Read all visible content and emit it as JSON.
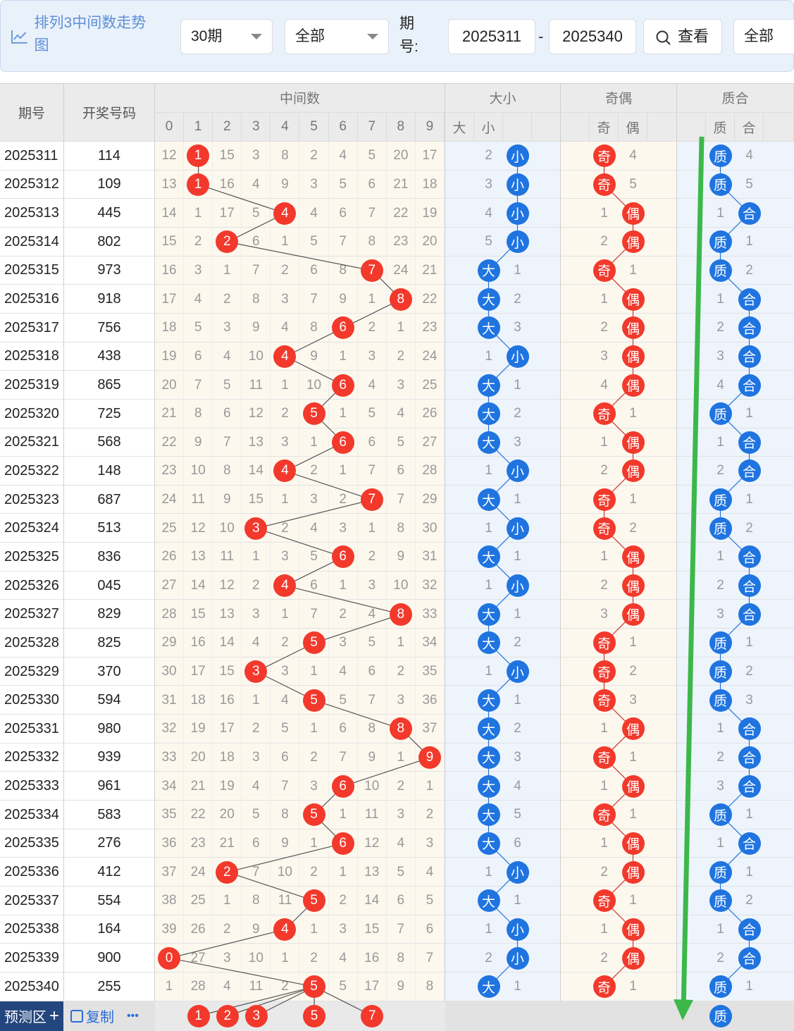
{
  "toolbar": {
    "title": "排列3中间数走势图",
    "period_select": "30期",
    "scope_select": "全部",
    "range_label": "期号:",
    "range_start": "2025311",
    "range_end": "2025340",
    "view_button": "查看",
    "all_select": "全部"
  },
  "headers": {
    "issue": "期号",
    "code": "开奖号码",
    "middle": "中间数",
    "bigsmall": "大小",
    "oddeven": "奇偶",
    "primecomp": "质合",
    "big": "大",
    "small": "小",
    "odd": "奇",
    "even": "偶",
    "prime": "质",
    "comp": "合",
    "digits": [
      "0",
      "1",
      "2",
      "3",
      "4",
      "5",
      "6",
      "7",
      "8",
      "9"
    ]
  },
  "chart_data": {
    "type": "table",
    "title": "排列3中间数走势图",
    "series": [
      {
        "name": "中间数"
      }
    ],
    "rows": [
      {
        "issue": "2025311",
        "code": "114",
        "digits": [
          "12",
          "1",
          "15",
          "3",
          "8",
          "2",
          "4",
          "5",
          "20",
          "17"
        ],
        "hit": 1,
        "bs": [
          "2",
          "小"
        ],
        "bs_hit": "small",
        "oe": [
          "奇",
          "4"
        ],
        "oe_hit": "odd",
        "pc": [
          "质",
          "4"
        ],
        "pc_hit": "prime"
      },
      {
        "issue": "2025312",
        "code": "109",
        "digits": [
          "13",
          "1",
          "16",
          "4",
          "9",
          "3",
          "5",
          "6",
          "21",
          "18"
        ],
        "hit": 1,
        "bs": [
          "3",
          "小"
        ],
        "bs_hit": "small",
        "oe": [
          "奇",
          "5"
        ],
        "oe_hit": "odd",
        "pc": [
          "质",
          "5"
        ],
        "pc_hit": "prime"
      },
      {
        "issue": "2025313",
        "code": "445",
        "digits": [
          "14",
          "1",
          "17",
          "5",
          "4",
          "4",
          "6",
          "7",
          "22",
          "19"
        ],
        "hit": 4,
        "bs": [
          "4",
          "小"
        ],
        "bs_hit": "small",
        "oe": [
          "1",
          "偶"
        ],
        "oe_hit": "even",
        "pc": [
          "1",
          "合"
        ],
        "pc_hit": "comp"
      },
      {
        "issue": "2025314",
        "code": "802",
        "digits": [
          "15",
          "2",
          "2",
          "6",
          "1",
          "5",
          "7",
          "8",
          "23",
          "20"
        ],
        "hit": 2,
        "bs": [
          "5",
          "小"
        ],
        "bs_hit": "small",
        "oe": [
          "2",
          "偶"
        ],
        "oe_hit": "even",
        "pc": [
          "质",
          "1"
        ],
        "pc_hit": "prime"
      },
      {
        "issue": "2025315",
        "code": "973",
        "digits": [
          "16",
          "3",
          "1",
          "7",
          "2",
          "6",
          "8",
          "7",
          "24",
          "21"
        ],
        "hit": 7,
        "bs": [
          "大",
          "1"
        ],
        "bs_hit": "big",
        "oe": [
          "奇",
          "1"
        ],
        "oe_hit": "odd",
        "pc": [
          "质",
          "2"
        ],
        "pc_hit": "prime"
      },
      {
        "issue": "2025316",
        "code": "918",
        "digits": [
          "17",
          "4",
          "2",
          "8",
          "3",
          "7",
          "9",
          "1",
          "8",
          "22"
        ],
        "hit": 8,
        "bs": [
          "大",
          "2"
        ],
        "bs_hit": "big",
        "oe": [
          "1",
          "偶"
        ],
        "oe_hit": "even",
        "pc": [
          "1",
          "合"
        ],
        "pc_hit": "comp"
      },
      {
        "issue": "2025317",
        "code": "756",
        "digits": [
          "18",
          "5",
          "3",
          "9",
          "4",
          "8",
          "6",
          "2",
          "1",
          "23"
        ],
        "hit": 6,
        "bs": [
          "大",
          "3"
        ],
        "bs_hit": "big",
        "oe": [
          "2",
          "偶"
        ],
        "oe_hit": "even",
        "pc": [
          "2",
          "合"
        ],
        "pc_hit": "comp"
      },
      {
        "issue": "2025318",
        "code": "438",
        "digits": [
          "19",
          "6",
          "4",
          "10",
          "4",
          "9",
          "1",
          "3",
          "2",
          "24"
        ],
        "hit": 4,
        "bs": [
          "1",
          "小"
        ],
        "bs_hit": "small",
        "oe": [
          "3",
          "偶"
        ],
        "oe_hit": "even",
        "pc": [
          "3",
          "合"
        ],
        "pc_hit": "comp"
      },
      {
        "issue": "2025319",
        "code": "865",
        "digits": [
          "20",
          "7",
          "5",
          "11",
          "1",
          "10",
          "6",
          "4",
          "3",
          "25"
        ],
        "hit": 6,
        "bs": [
          "大",
          "1"
        ],
        "bs_hit": "big",
        "oe": [
          "4",
          "偶"
        ],
        "oe_hit": "even",
        "pc": [
          "4",
          "合"
        ],
        "pc_hit": "comp"
      },
      {
        "issue": "2025320",
        "code": "725",
        "digits": [
          "21",
          "8",
          "6",
          "12",
          "2",
          "5",
          "1",
          "5",
          "4",
          "26"
        ],
        "hit": 5,
        "bs": [
          "大",
          "2"
        ],
        "bs_hit": "big",
        "oe": [
          "奇",
          "1"
        ],
        "oe_hit": "odd",
        "pc": [
          "质",
          "1"
        ],
        "pc_hit": "prime"
      },
      {
        "issue": "2025321",
        "code": "568",
        "digits": [
          "22",
          "9",
          "7",
          "13",
          "3",
          "1",
          "6",
          "6",
          "5",
          "27"
        ],
        "hit": 6,
        "bs": [
          "大",
          "3"
        ],
        "bs_hit": "big",
        "oe": [
          "1",
          "偶"
        ],
        "oe_hit": "even",
        "pc": [
          "1",
          "合"
        ],
        "pc_hit": "comp"
      },
      {
        "issue": "2025322",
        "code": "148",
        "digits": [
          "23",
          "10",
          "8",
          "14",
          "4",
          "2",
          "1",
          "7",
          "6",
          "28"
        ],
        "hit": 4,
        "bs": [
          "1",
          "小"
        ],
        "bs_hit": "small",
        "oe": [
          "2",
          "偶"
        ],
        "oe_hit": "even",
        "pc": [
          "2",
          "合"
        ],
        "pc_hit": "comp"
      },
      {
        "issue": "2025323",
        "code": "687",
        "digits": [
          "24",
          "11",
          "9",
          "15",
          "1",
          "3",
          "2",
          "7",
          "7",
          "29"
        ],
        "hit": 7,
        "bs": [
          "大",
          "1"
        ],
        "bs_hit": "big",
        "oe": [
          "奇",
          "1"
        ],
        "oe_hit": "odd",
        "pc": [
          "质",
          "1"
        ],
        "pc_hit": "prime"
      },
      {
        "issue": "2025324",
        "code": "513",
        "digits": [
          "25",
          "12",
          "10",
          "3",
          "2",
          "4",
          "3",
          "1",
          "8",
          "30"
        ],
        "hit": 3,
        "bs": [
          "1",
          "小"
        ],
        "bs_hit": "small",
        "oe": [
          "奇",
          "2"
        ],
        "oe_hit": "odd",
        "pc": [
          "质",
          "2"
        ],
        "pc_hit": "prime"
      },
      {
        "issue": "2025325",
        "code": "836",
        "digits": [
          "26",
          "13",
          "11",
          "1",
          "3",
          "5",
          "6",
          "2",
          "9",
          "31"
        ],
        "hit": 6,
        "bs": [
          "大",
          "1"
        ],
        "bs_hit": "big",
        "oe": [
          "1",
          "偶"
        ],
        "oe_hit": "even",
        "pc": [
          "1",
          "合"
        ],
        "pc_hit": "comp"
      },
      {
        "issue": "2025326",
        "code": "045",
        "digits": [
          "27",
          "14",
          "12",
          "2",
          "4",
          "6",
          "1",
          "3",
          "10",
          "32"
        ],
        "hit": 4,
        "bs": [
          "1",
          "小"
        ],
        "bs_hit": "small",
        "oe": [
          "2",
          "偶"
        ],
        "oe_hit": "even",
        "pc": [
          "2",
          "合"
        ],
        "pc_hit": "comp"
      },
      {
        "issue": "2025327",
        "code": "829",
        "digits": [
          "28",
          "15",
          "13",
          "3",
          "1",
          "7",
          "2",
          "4",
          "8",
          "33"
        ],
        "hit": 8,
        "bs": [
          "大",
          "1"
        ],
        "bs_hit": "big",
        "oe": [
          "3",
          "偶"
        ],
        "oe_hit": "even",
        "pc": [
          "3",
          "合"
        ],
        "pc_hit": "comp"
      },
      {
        "issue": "2025328",
        "code": "825",
        "digits": [
          "29",
          "16",
          "14",
          "4",
          "2",
          "5",
          "3",
          "5",
          "1",
          "34"
        ],
        "hit": 5,
        "bs": [
          "大",
          "2"
        ],
        "bs_hit": "big",
        "oe": [
          "奇",
          "1"
        ],
        "oe_hit": "odd",
        "pc": [
          "质",
          "1"
        ],
        "pc_hit": "prime"
      },
      {
        "issue": "2025329",
        "code": "370",
        "digits": [
          "30",
          "17",
          "15",
          "3",
          "3",
          "1",
          "4",
          "6",
          "2",
          "35"
        ],
        "hit": 3,
        "bs": [
          "1",
          "小"
        ],
        "bs_hit": "small",
        "oe": [
          "奇",
          "2"
        ],
        "oe_hit": "odd",
        "pc": [
          "质",
          "2"
        ],
        "pc_hit": "prime"
      },
      {
        "issue": "2025330",
        "code": "594",
        "digits": [
          "31",
          "18",
          "16",
          "1",
          "4",
          "5",
          "5",
          "7",
          "3",
          "36"
        ],
        "hit": 5,
        "bs": [
          "大",
          "1"
        ],
        "bs_hit": "big",
        "oe": [
          "奇",
          "3"
        ],
        "oe_hit": "odd",
        "pc": [
          "质",
          "3"
        ],
        "pc_hit": "prime"
      },
      {
        "issue": "2025331",
        "code": "980",
        "digits": [
          "32",
          "19",
          "17",
          "2",
          "5",
          "1",
          "6",
          "8",
          "8",
          "37"
        ],
        "hit": 8,
        "bs": [
          "大",
          "2"
        ],
        "bs_hit": "big",
        "oe": [
          "1",
          "偶"
        ],
        "oe_hit": "even",
        "pc": [
          "1",
          "合"
        ],
        "pc_hit": "comp"
      },
      {
        "issue": "2025332",
        "code": "939",
        "digits": [
          "33",
          "20",
          "18",
          "3",
          "6",
          "2",
          "7",
          "9",
          "1",
          "9"
        ],
        "hit": 9,
        "bs": [
          "大",
          "3"
        ],
        "bs_hit": "big",
        "oe": [
          "奇",
          "1"
        ],
        "oe_hit": "odd",
        "pc": [
          "2",
          "合"
        ],
        "pc_hit": "comp"
      },
      {
        "issue": "2025333",
        "code": "961",
        "digits": [
          "34",
          "21",
          "19",
          "4",
          "7",
          "3",
          "6",
          "10",
          "2",
          "1"
        ],
        "hit": 6,
        "bs": [
          "大",
          "4"
        ],
        "bs_hit": "big",
        "oe": [
          "1",
          "偶"
        ],
        "oe_hit": "even",
        "pc": [
          "3",
          "合"
        ],
        "pc_hit": "comp"
      },
      {
        "issue": "2025334",
        "code": "583",
        "digits": [
          "35",
          "22",
          "20",
          "5",
          "8",
          "5",
          "1",
          "11",
          "3",
          "2"
        ],
        "hit": 5,
        "bs": [
          "大",
          "5"
        ],
        "bs_hit": "big",
        "oe": [
          "奇",
          "1"
        ],
        "oe_hit": "odd",
        "pc": [
          "质",
          "1"
        ],
        "pc_hit": "prime"
      },
      {
        "issue": "2025335",
        "code": "276",
        "digits": [
          "36",
          "23",
          "21",
          "6",
          "9",
          "1",
          "6",
          "12",
          "4",
          "3"
        ],
        "hit": 6,
        "bs": [
          "大",
          "6"
        ],
        "bs_hit": "big",
        "oe": [
          "1",
          "偶"
        ],
        "oe_hit": "even",
        "pc": [
          "1",
          "合"
        ],
        "pc_hit": "comp"
      },
      {
        "issue": "2025336",
        "code": "412",
        "digits": [
          "37",
          "24",
          "2",
          "7",
          "10",
          "2",
          "1",
          "13",
          "5",
          "4"
        ],
        "hit": 2,
        "bs": [
          "1",
          "小"
        ],
        "bs_hit": "small",
        "oe": [
          "2",
          "偶"
        ],
        "oe_hit": "even",
        "pc": [
          "质",
          "1"
        ],
        "pc_hit": "prime"
      },
      {
        "issue": "2025337",
        "code": "554",
        "digits": [
          "38",
          "25",
          "1",
          "8",
          "11",
          "5",
          "2",
          "14",
          "6",
          "5"
        ],
        "hit": 5,
        "bs": [
          "大",
          "1"
        ],
        "bs_hit": "big",
        "oe": [
          "奇",
          "1"
        ],
        "oe_hit": "odd",
        "pc": [
          "质",
          "2"
        ],
        "pc_hit": "prime"
      },
      {
        "issue": "2025338",
        "code": "164",
        "digits": [
          "39",
          "26",
          "2",
          "9",
          "4",
          "1",
          "3",
          "15",
          "7",
          "6"
        ],
        "hit": 4,
        "bs": [
          "1",
          "小"
        ],
        "bs_hit": "small",
        "oe": [
          "1",
          "偶"
        ],
        "oe_hit": "even",
        "pc": [
          "1",
          "合"
        ],
        "pc_hit": "comp"
      },
      {
        "issue": "2025339",
        "code": "900",
        "digits": [
          "0",
          "27",
          "3",
          "10",
          "1",
          "2",
          "4",
          "16",
          "8",
          "7"
        ],
        "hit": 0,
        "bs": [
          "2",
          "小"
        ],
        "bs_hit": "small",
        "oe": [
          "2",
          "偶"
        ],
        "oe_hit": "even",
        "pc": [
          "2",
          "合"
        ],
        "pc_hit": "comp"
      },
      {
        "issue": "2025340",
        "code": "255",
        "digits": [
          "1",
          "28",
          "4",
          "11",
          "2",
          "5",
          "5",
          "17",
          "9",
          "8"
        ],
        "hit": 5,
        "bs": [
          "大",
          "1"
        ],
        "bs_hit": "big",
        "oe": [
          "奇",
          "1"
        ],
        "oe_hit": "odd",
        "pc": [
          "质",
          "1"
        ],
        "pc_hit": "prime"
      }
    ],
    "forecast": {
      "digits": [
        1,
        2,
        3,
        5,
        7
      ],
      "pc": "质"
    }
  },
  "footer": {
    "predict_label": "预测区",
    "copy_label": "复制",
    "more": "•••"
  },
  "colors": {
    "red": "#f2392c",
    "blue": "#1f74e0",
    "green": "#3cb84a",
    "header_bg": "#ebebeb",
    "mid_bg": "#fdf8ee",
    "alt_bg": "#eef4fc"
  }
}
